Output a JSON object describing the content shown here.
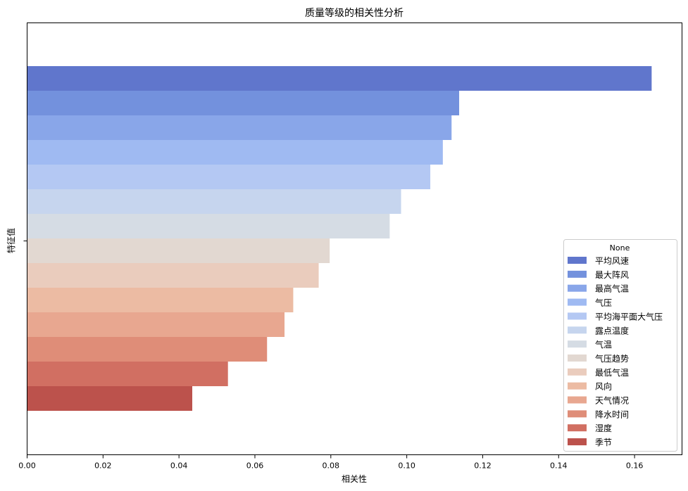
{
  "chart_data": {
    "type": "bar",
    "orientation": "horizontal",
    "title": "质量等级的相关性分析",
    "xlabel": "相关性",
    "ylabel": "特征值",
    "xlim": [
      0,
      0.1725
    ],
    "x_ticks": [
      "0.00",
      "0.02",
      "0.04",
      "0.06",
      "0.08",
      "0.10",
      "0.12",
      "0.14",
      "0.16"
    ],
    "legend_title": "None",
    "legend_position": "bottom-right",
    "grid": false,
    "series": [
      {
        "name": "平均风速",
        "value": 0.1645,
        "color": "#6076cc"
      },
      {
        "name": "最大阵风",
        "value": 0.1138,
        "color": "#7391dd"
      },
      {
        "name": "最高气温",
        "value": 0.1118,
        "color": "#89a6e9"
      },
      {
        "name": "气压",
        "value": 0.1095,
        "color": "#9fbaf2"
      },
      {
        "name": "平均海平面大气压",
        "value": 0.1062,
        "color": "#b4c8f3"
      },
      {
        "name": "露点温度",
        "value": 0.0985,
        "color": "#c6d5ee"
      },
      {
        "name": "气温",
        "value": 0.0955,
        "color": "#d5dce4"
      },
      {
        "name": "气压趋势",
        "value": 0.0797,
        "color": "#e2d8d1"
      },
      {
        "name": "最低气温",
        "value": 0.0768,
        "color": "#eaccbd"
      },
      {
        "name": "风向",
        "value": 0.0701,
        "color": "#ecbba3"
      },
      {
        "name": "天气情况",
        "value": 0.0678,
        "color": "#e8a790"
      },
      {
        "name": "降水时间",
        "value": 0.0632,
        "color": "#df8d78"
      },
      {
        "name": "湿度",
        "value": 0.0529,
        "color": "#d16f62"
      },
      {
        "name": "季节",
        "value": 0.0435,
        "color": "#bc524c"
      }
    ]
  }
}
